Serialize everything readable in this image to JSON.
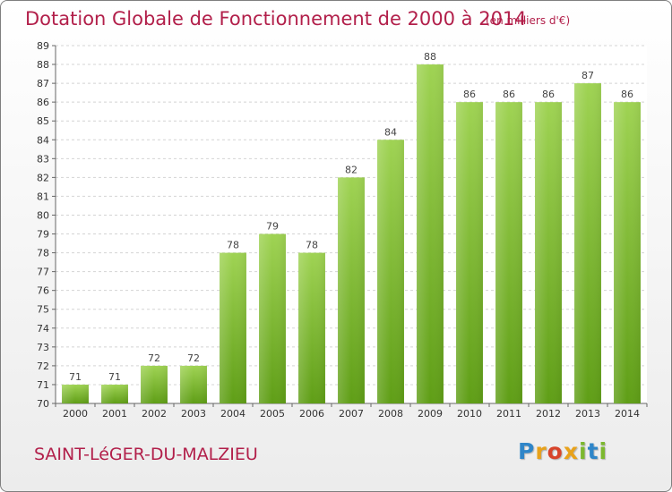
{
  "chart_data": {
    "type": "bar",
    "title": "Dotation Globale de Fonctionnement de 2000 à 2014",
    "subtitle": "(en milliers d'€)",
    "categories": [
      "2000",
      "2001",
      "2002",
      "2003",
      "2004",
      "2005",
      "2006",
      "2007",
      "2008",
      "2009",
      "2010",
      "2011",
      "2012",
      "2013",
      "2014"
    ],
    "values": [
      71,
      71,
      72,
      72,
      78,
      79,
      78,
      82,
      84,
      88,
      86,
      86,
      86,
      87,
      86
    ],
    "xlabel": "",
    "ylabel": "",
    "ylim": [
      70,
      89
    ],
    "yticks": [
      70,
      71,
      72,
      73,
      74,
      75,
      76,
      77,
      78,
      79,
      80,
      81,
      82,
      83,
      84,
      85,
      86,
      87,
      88,
      89
    ],
    "grid": true,
    "bar_color_top": "#9fd353",
    "bar_color_bottom": "#5f9e16"
  },
  "footer": {
    "commune": "SAINT-LéGER-DU-MALZIEU",
    "logo_letters": [
      "P",
      "r",
      "o",
      "x",
      "i",
      "t",
      "i"
    ],
    "logo_colors": [
      "#2f86c9",
      "#e8a21b",
      "#d8442b",
      "#e8a21b",
      "#7cb82f",
      "#2f86c9",
      "#7cb82f"
    ]
  }
}
